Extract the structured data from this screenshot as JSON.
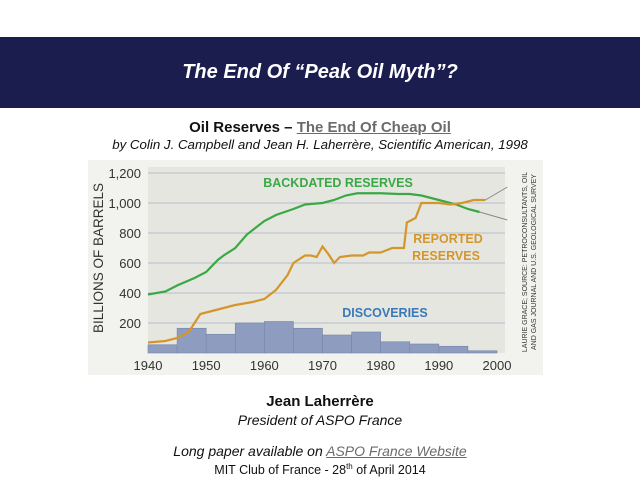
{
  "slide": {
    "title": "The End Of “Peak Oil Myth”?",
    "subtitle_prefix": "Oil Reserves – ",
    "subtitle_link": "The End Of Cheap Oil",
    "byline": "by Colin J. Campbell and Jean H. Laherrère, Scientific American, 1998",
    "author": "Jean Laherrère",
    "author_role": "President of ASPO France",
    "paper_prefix": "Long paper available on ",
    "paper_link": "ASPO France Website",
    "event_prefix": "MIT Club of France - 28",
    "event_sup": "th",
    "event_suffix": " of April 2014"
  },
  "chart_data": {
    "type": "line",
    "ylabel": "BILLIONS OF BARRELS",
    "xlabel": "",
    "source": [
      "LAURIE GRACE; SOURCE: PETROCONSULTANTS, OIL",
      "AND GAS JOURNAL AND U.S. GEOLOGICAL SURVEY"
    ],
    "xlim": [
      1940,
      2000
    ],
    "ylim": [
      0,
      1200
    ],
    "x_ticks": [
      "1940",
      "1950",
      "1960",
      "1970",
      "1980",
      "1990",
      "2000"
    ],
    "y_ticks": [
      "200",
      "400",
      "600",
      "800",
      "1,000",
      "1,200"
    ],
    "grid": true,
    "colors": {
      "backdated": "#3aa845",
      "reported": "#d4962a",
      "discoveries": "#8e9dbf",
      "discoveries_label": "#3a79b8",
      "background": "#e6e6e1"
    },
    "series": [
      {
        "name": "BACKDATED RESERVES",
        "x": [
          1940,
          1943,
          1945,
          1948,
          1950,
          1952,
          1953,
          1955,
          1957,
          1960,
          1962,
          1965,
          1967,
          1970,
          1972,
          1974,
          1976,
          1980,
          1983,
          1985,
          1987,
          1990,
          1993,
          1995,
          1997
        ],
        "y": [
          390,
          410,
          450,
          500,
          540,
          620,
          650,
          700,
          790,
          880,
          920,
          960,
          990,
          1000,
          1020,
          1050,
          1065,
          1065,
          1060,
          1060,
          1050,
          1020,
          990,
          960,
          940
        ]
      },
      {
        "name": "REPORTED RESERVES",
        "x": [
          1940,
          1943,
          1945,
          1947,
          1949,
          1950,
          1953,
          1955,
          1958,
          1960,
          1962,
          1964,
          1965,
          1967,
          1968,
          1969,
          1970,
          1971,
          1972,
          1973,
          1975,
          1977,
          1978,
          1980,
          1982,
          1984,
          1984.5,
          1986,
          1987,
          1990,
          1992,
          1994,
          1996,
          1998
        ],
        "y": [
          70,
          80,
          100,
          140,
          260,
          270,
          300,
          320,
          340,
          360,
          420,
          520,
          600,
          650,
          650,
          640,
          710,
          660,
          600,
          640,
          650,
          650,
          670,
          670,
          700,
          700,
          870,
          900,
          1000,
          1000,
          990,
          1000,
          1020,
          1020
        ]
      },
      {
        "name": "DISCOVERIES",
        "type": "bar",
        "bins": [
          1940,
          1945,
          1950,
          1955,
          1960,
          1965,
          1970,
          1975,
          1980,
          1985,
          1990,
          1995
        ],
        "bin_width": 5,
        "y": [
          55,
          165,
          125,
          200,
          210,
          165,
          120,
          140,
          75,
          60,
          45,
          15
        ]
      }
    ]
  }
}
